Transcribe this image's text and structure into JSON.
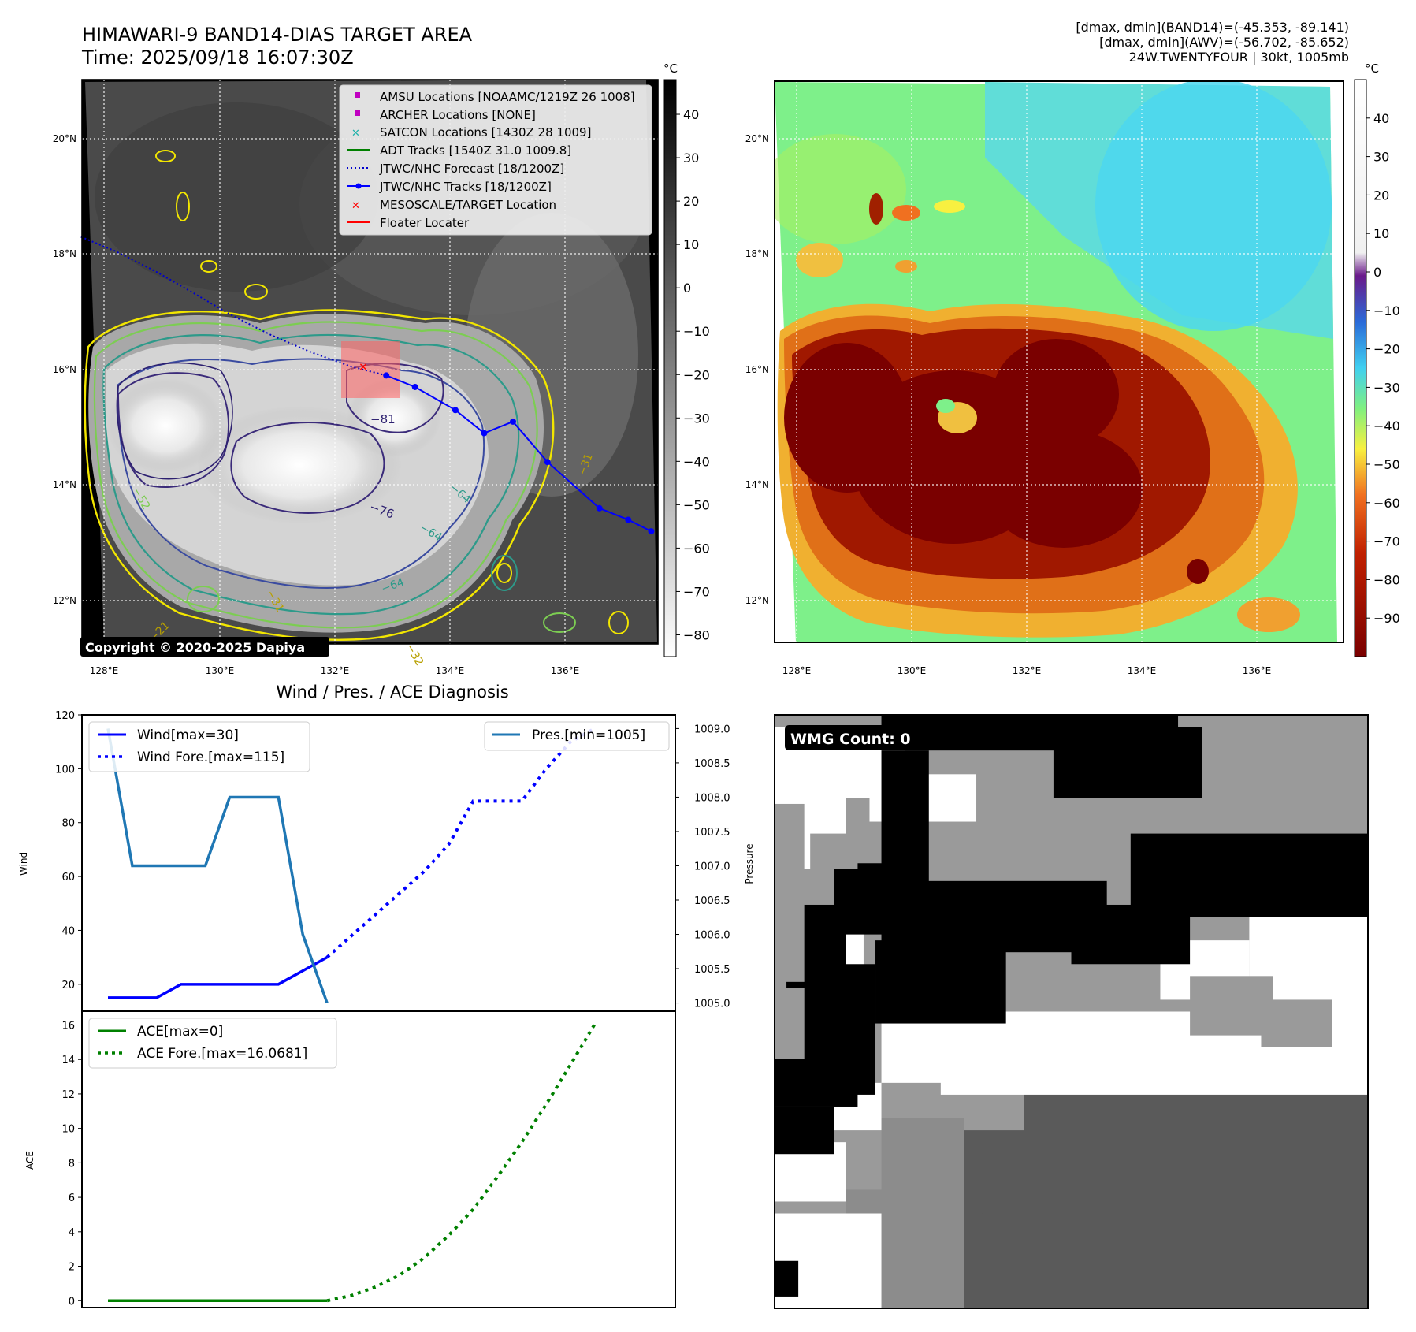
{
  "header": {
    "title": "HIMAWARI-9 BAND14-DIAS TARGET AREA",
    "time": "Time: 2025/09/18 16:07:30Z",
    "info_lines": [
      "[dmax, dmin](BAND14)=(-45.353, -89.141)",
      "[dmax, dmin](AWV)=(-56.702, -85.652)",
      "24W.TWENTYFOUR | 30kt, 1005mb"
    ]
  },
  "map": {
    "lon_ticks": [
      "128°E",
      "130°E",
      "132°E",
      "134°E",
      "136°E"
    ],
    "lat_ticks": [
      "20°N",
      "18°N",
      "16°N",
      "14°N",
      "12°N"
    ],
    "copyright": "Copyright © 2020-2025 Dapiya",
    "contour_labels": [
      "−81",
      "−76",
      "−64",
      "−64",
      "−64",
      "−31",
      "−31",
      "−32",
      "−21",
      "−52"
    ],
    "legend": [
      "AMSU Locations [NOAAMC/1219Z 26 1008]",
      "ARCHER Locations [NONE]",
      "SATCON Locations [1430Z 28 1009]",
      "ADT Tracks [1540Z 31.0 1009.8]",
      "JTWC/NHC Forecast [18/1200Z]",
      "JTWC/NHC Tracks [18/1200Z]",
      "MESOSCALE/TARGET Location",
      "Floater Locater"
    ],
    "track": [
      [
        132.9,
        15.9
      ],
      [
        133.4,
        15.7
      ],
      [
        134.1,
        15.3
      ],
      [
        134.6,
        14.9
      ],
      [
        135.1,
        15.1
      ],
      [
        135.7,
        14.4
      ],
      [
        136.6,
        13.6
      ],
      [
        137.1,
        13.4
      ],
      [
        137.5,
        13.2
      ]
    ],
    "forecast": [
      [
        127.6,
        18.3
      ],
      [
        128.2,
        18.05
      ],
      [
        128.9,
        17.7
      ],
      [
        129.6,
        17.3
      ],
      [
        130.2,
        16.95
      ],
      [
        130.9,
        16.6
      ],
      [
        131.6,
        16.3
      ],
      [
        132.3,
        16.05
      ],
      [
        132.9,
        15.9
      ]
    ],
    "target": [
      132.5,
      16.05
    ],
    "colors": {
      "track": "#0000ff",
      "forecast": "#0000cc",
      "target": "#ff0000",
      "floater": "#ff8888",
      "adt": "#008000",
      "amsu": "#c000c0",
      "satcon": "#20b2aa"
    }
  },
  "colorbar_left": {
    "unit": "°C",
    "ticks": [
      "40",
      "30",
      "20",
      "10",
      "0",
      "−10",
      "−20",
      "−30",
      "−40",
      "−50",
      "−60",
      "−70",
      "−80"
    ]
  },
  "colorbar_right": {
    "unit": "°C",
    "ticks": [
      "40",
      "30",
      "20",
      "10",
      "0",
      "−10",
      "−20",
      "−30",
      "−40",
      "−50",
      "−60",
      "−70",
      "−80",
      "−90"
    ]
  },
  "diag": {
    "title": "Wind / Pres. / ACE Diagnosis",
    "wind_label": "Wind",
    "pressure_label": "Pressure",
    "ace_label": "ACE",
    "wind_ticks": [
      "120",
      "100",
      "80",
      "60",
      "40",
      "20"
    ],
    "pres_ticks": [
      "1009.0",
      "1008.5",
      "1008.0",
      "1007.5",
      "1007.0",
      "1006.5",
      "1006.0",
      "1005.5",
      "1005.0"
    ],
    "ace_ticks": [
      "16",
      "14",
      "12",
      "10",
      "8",
      "6",
      "4",
      "2",
      "0"
    ],
    "legend_wind": [
      "Wind[max=30]",
      "Wind Fore.[max=115]"
    ],
    "legend_pres": [
      "Pres.[min=1005]"
    ],
    "legend_ace": [
      "ACE[max=0]",
      "ACE Fore.[max=16.0681]"
    ]
  },
  "wmg": {
    "label": "WMG Count: 0"
  },
  "chart_data": [
    {
      "type": "line",
      "x": [
        0,
        1,
        2,
        3,
        4,
        5,
        6,
        7,
        8,
        9,
        10,
        11,
        12,
        13,
        14,
        15,
        16,
        17,
        18,
        19,
        20
      ],
      "series": [
        {
          "name": "Wind[max=30]",
          "axis": "Wind",
          "x": [
            0,
            1,
            2,
            3,
            4,
            5,
            6,
            7,
            8,
            9
          ],
          "values": [
            15,
            15,
            15,
            20,
            20,
            20,
            20,
            20,
            25,
            30
          ]
        },
        {
          "name": "Wind Fore.[max=115]",
          "axis": "Wind",
          "x": [
            9,
            10,
            11,
            12,
            13,
            14,
            15,
            16,
            17,
            18,
            19,
            20
          ],
          "values": [
            30,
            38,
            46,
            54,
            62,
            72,
            88,
            88,
            88,
            100,
            110,
            115
          ]
        },
        {
          "name": "Pres.[min=1005]",
          "axis": "Pressure",
          "x": [
            0,
            1,
            2,
            3,
            4,
            5,
            6,
            7,
            8,
            9
          ],
          "values": [
            1009,
            1007,
            1007,
            1007,
            1007,
            1008,
            1008,
            1008,
            1006,
            1005
          ]
        }
      ],
      "ylim_wind": [
        10,
        120
      ],
      "ylim_pres": [
        1004.88,
        1009.2
      ],
      "ylabel": "Wind",
      "y2label": "Pressure"
    },
    {
      "type": "line",
      "x": [
        0,
        1,
        2,
        3,
        4,
        5,
        6,
        7,
        8,
        9,
        10,
        11,
        12,
        13,
        14,
        15,
        16,
        17,
        18,
        19,
        20
      ],
      "series": [
        {
          "name": "ACE[max=0]",
          "x": [
            0,
            1,
            2,
            3,
            4,
            5,
            6,
            7,
            8,
            9
          ],
          "values": [
            0,
            0,
            0,
            0,
            0,
            0,
            0,
            0,
            0,
            0
          ]
        },
        {
          "name": "ACE Fore.[max=16.0681]",
          "x": [
            9,
            10,
            11,
            12,
            13,
            14,
            15,
            16,
            17,
            18,
            19,
            20
          ],
          "values": [
            0,
            0.3,
            0.8,
            1.5,
            2.5,
            3.8,
            5.3,
            7.2,
            9.2,
            11.4,
            13.7,
            16.07
          ]
        }
      ],
      "ylim": [
        -0.4,
        16.8
      ],
      "ylabel": "ACE"
    }
  ]
}
